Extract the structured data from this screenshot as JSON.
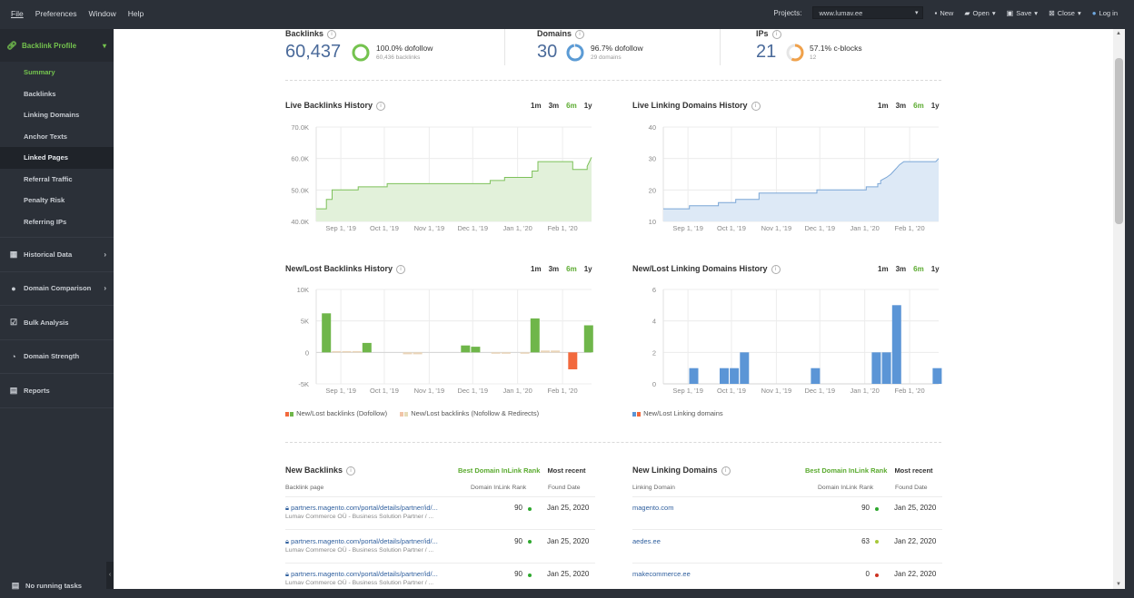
{
  "menu": [
    "File",
    "Preferences",
    "Window",
    "Help"
  ],
  "toolbar": {
    "projects_label": "Projects:",
    "project_value": "www.lumav.ee",
    "new": "New",
    "open": "Open",
    "save": "Save",
    "close": "Close",
    "login": "Log in"
  },
  "sidebar": {
    "section": "Backlink Profile",
    "items": [
      "Summary",
      "Backlinks",
      "Linking Domains",
      "Anchor Texts",
      "Linked Pages",
      "Referral Traffic",
      "Penalty Risk",
      "Referring IPs"
    ],
    "sections": [
      "Historical Data",
      "Domain Comparison",
      "Bulk Analysis",
      "Domain Strength",
      "Reports"
    ],
    "tasks": "No running tasks"
  },
  "stats": {
    "backlinks": {
      "label": "Backlinks",
      "value": "60,437",
      "pct": "100.0% dofollow",
      "sub": "60,436 backlinks",
      "ring": 1.0,
      "color": "#74c34e"
    },
    "domains": {
      "label": "Domains",
      "value": "30",
      "pct": "96.7% dofollow",
      "sub": "29 domains",
      "ring": 0.967,
      "color": "#5b9bd5"
    },
    "ips": {
      "label": "IPs",
      "value": "21",
      "pct": "57.1% c-blocks",
      "sub": "12",
      "ring": 0.571,
      "color": "#f0a14a"
    }
  },
  "periods": [
    "1m",
    "3m",
    "6m",
    "1y"
  ],
  "chart_data": [
    {
      "type": "area",
      "title": "Live Backlinks History",
      "x_ticks": [
        "Sep 1, '19",
        "Oct 1, '19",
        "Nov 1, '19",
        "Dec 1, '19",
        "Jan 1, '20",
        "Feb 1, '20"
      ],
      "y_ticks": [
        "40.0K",
        "50.0K",
        "60.0K",
        "70.0K"
      ],
      "ylim": [
        40000,
        70000
      ],
      "x_start": "2019-08-15",
      "x_end": "2020-02-21",
      "points": [
        [
          "2019-08-15",
          44000
        ],
        [
          "2019-08-22",
          44000
        ],
        [
          "2019-08-22",
          47000
        ],
        [
          "2019-08-26",
          47000
        ],
        [
          "2019-08-26",
          50000
        ],
        [
          "2019-09-13",
          50000
        ],
        [
          "2019-09-13",
          51000
        ],
        [
          "2019-10-03",
          51000
        ],
        [
          "2019-10-03",
          52000
        ],
        [
          "2019-12-13",
          52000
        ],
        [
          "2019-12-13",
          53000
        ],
        [
          "2019-12-23",
          53000
        ],
        [
          "2019-12-23",
          54000
        ],
        [
          "2020-01-11",
          54000
        ],
        [
          "2020-01-11",
          56000
        ],
        [
          "2020-01-15",
          56000
        ],
        [
          "2020-01-15",
          59000
        ],
        [
          "2020-02-08",
          59000
        ],
        [
          "2020-02-08",
          56500
        ],
        [
          "2020-02-18",
          56500
        ],
        [
          "2020-02-18",
          57500
        ],
        [
          "2020-02-21",
          60400
        ]
      ],
      "color": "#7dc15a",
      "fill": "#e2f1da"
    },
    {
      "type": "area",
      "title": "Live Linking Domains History",
      "x_ticks": [
        "Sep 1, '19",
        "Oct 1, '19",
        "Nov 1, '19",
        "Dec 1, '19",
        "Jan 1, '20",
        "Feb 1, '20"
      ],
      "y_ticks": [
        "10",
        "20",
        "30",
        "40"
      ],
      "ylim": [
        10,
        40
      ],
      "x_start": "2019-08-15",
      "x_end": "2020-02-21",
      "points": [
        [
          "2019-08-15",
          14
        ],
        [
          "2019-09-02",
          14
        ],
        [
          "2019-09-02",
          15
        ],
        [
          "2019-09-22",
          15
        ],
        [
          "2019-09-22",
          16
        ],
        [
          "2019-10-04",
          16
        ],
        [
          "2019-10-04",
          17
        ],
        [
          "2019-10-20",
          17
        ],
        [
          "2019-10-20",
          19
        ],
        [
          "2019-11-29",
          19
        ],
        [
          "2019-11-29",
          20
        ],
        [
          "2020-01-02",
          20
        ],
        [
          "2020-01-02",
          21
        ],
        [
          "2020-01-10",
          21
        ],
        [
          "2020-01-10",
          22
        ],
        [
          "2020-01-12",
          22
        ],
        [
          "2020-01-12",
          23
        ],
        [
          "2020-01-16",
          24
        ],
        [
          "2020-01-19",
          25
        ],
        [
          "2020-01-21",
          26
        ],
        [
          "2020-01-23",
          27
        ],
        [
          "2020-01-25",
          28
        ],
        [
          "2020-01-28",
          29
        ],
        [
          "2020-02-19",
          29
        ],
        [
          "2020-02-21",
          30
        ]
      ],
      "color": "#7aa6d6",
      "fill": "#dde9f6"
    },
    {
      "type": "bar",
      "title": "New/Lost Backlinks History",
      "x_ticks": [
        "Sep 1, '19",
        "Oct 1, '19",
        "Nov 1, '19",
        "Dec 1, '19",
        "Jan 1, '20",
        "Feb 1, '20"
      ],
      "y_ticks": [
        "-5K",
        "0",
        "5K",
        "10K"
      ],
      "ylim": [
        -5000,
        10000
      ],
      "x_start": "2019-08-15",
      "x_end": "2020-02-21",
      "series": [
        {
          "name": "New/Lost backlinks (Dofollow)",
          "color": "#6fb64a",
          "points": [
            [
              "2019-08-22",
              6200
            ],
            [
              "2019-09-19",
              1500
            ],
            [
              "2019-11-26",
              1100
            ],
            [
              "2019-12-03",
              900
            ],
            [
              "2020-01-13",
              5400
            ],
            [
              "2020-02-19",
              4300
            ]
          ]
        },
        {
          "name": "New/Lost backlinks (Dofollow) lost",
          "color": "#f2693d",
          "points": [
            [
              "2020-02-08",
              -2700
            ]
          ]
        },
        {
          "name": "New/Lost backlinks (Nofollow & Redirects)",
          "color": "#ead5b8",
          "points": [
            [
              "2019-08-29",
              200
            ],
            [
              "2019-09-05",
              200
            ],
            [
              "2019-09-12",
              200
            ],
            [
              "2019-10-17",
              -300
            ],
            [
              "2019-10-24",
              -300
            ],
            [
              "2019-12-17",
              -200
            ],
            [
              "2019-12-24",
              -200
            ],
            [
              "2020-01-06",
              -200
            ],
            [
              "2020-01-20",
              300
            ],
            [
              "2020-01-27",
              300
            ]
          ]
        }
      ]
    },
    {
      "type": "bar",
      "title": "New/Lost Linking Domains History",
      "x_ticks": [
        "Sep 1, '19",
        "Oct 1, '19",
        "Nov 1, '19",
        "Dec 1, '19",
        "Jan 1, '20",
        "Feb 1, '20"
      ],
      "y_ticks": [
        "0",
        "2",
        "4",
        "6"
      ],
      "ylim": [
        0,
        6
      ],
      "x_start": "2019-08-15",
      "x_end": "2020-02-21",
      "series": [
        {
          "name": "New/Lost Linking domains",
          "color": "#5b95d6",
          "points": [
            [
              "2019-09-05",
              1
            ],
            [
              "2019-09-26",
              1
            ],
            [
              "2019-10-03",
              1
            ],
            [
              "2019-10-10",
              2
            ],
            [
              "2019-11-28",
              1
            ],
            [
              "2020-01-09",
              2
            ],
            [
              "2020-01-16",
              2
            ],
            [
              "2020-01-23",
              5
            ],
            [
              "2020-02-20",
              1
            ]
          ]
        }
      ]
    }
  ],
  "legend_backlinks": [
    "New/Lost backlinks (Dofollow)",
    "New/Lost backlinks (Nofollow & Redirects)"
  ],
  "legend_domains": [
    "New/Lost Linking domains"
  ],
  "new_backlinks": {
    "title": "New Backlinks",
    "sort_rank": "Best Domain InLink Rank",
    "sort_recent": "Most recent",
    "col_page": "Backlink page",
    "col_rank": "Domain InLink Rank",
    "col_date": "Found Date",
    "rows": [
      {
        "link": "partners.magento.com/portal/details/partner/id/...",
        "sub": "Lumav Commerce OÜ - Business Solution Partner / ...",
        "rank": "90",
        "dot": "#2ea82e",
        "date": "Jan 25, 2020"
      },
      {
        "link": "partners.magento.com/portal/details/partner/id/...",
        "sub": "Lumav Commerce OÜ - Business Solution Partner / ...",
        "rank": "90",
        "dot": "#2ea82e",
        "date": "Jan 25, 2020"
      },
      {
        "link": "partners.magento.com/portal/details/partner/id/...",
        "sub": "Lumav Commerce OÜ - Business Solution Partner / ...",
        "rank": "90",
        "dot": "#2ea82e",
        "date": "Jan 25, 2020"
      }
    ]
  },
  "new_domains": {
    "title": "New Linking Domains",
    "sort_rank": "Best Domain InLink Rank",
    "sort_recent": "Most recent",
    "col_domain": "Linking Domain",
    "col_rank": "Domain InLink Rank",
    "col_date": "Found Date",
    "rows": [
      {
        "link": "magento.com",
        "rank": "90",
        "dot": "#2ea82e",
        "date": "Jan 25, 2020"
      },
      {
        "link": "aedes.ee",
        "rank": "63",
        "dot": "#a8c83a",
        "date": "Jan 22, 2020"
      },
      {
        "link": "makecommerce.ee",
        "rank": "0",
        "dot": "#cc3322",
        "date": "Jan 22, 2020"
      }
    ]
  }
}
